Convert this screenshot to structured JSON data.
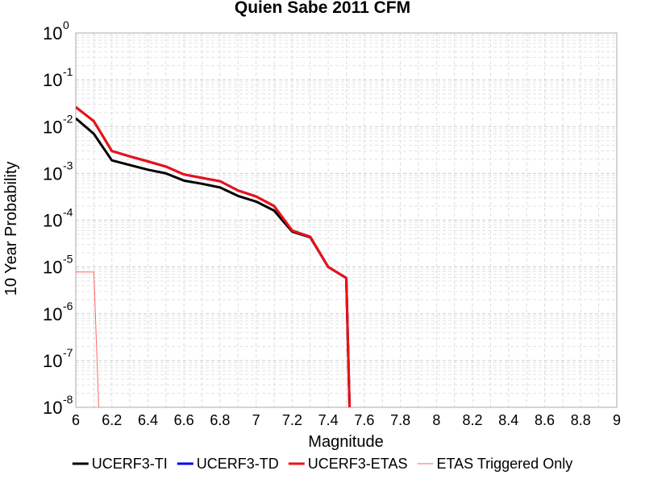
{
  "chart_data": {
    "type": "line",
    "title": "Quien Sabe 2011 CFM",
    "xlabel": "Magnitude",
    "ylabel": "10 Year Probability",
    "xlim": [
      6,
      9
    ],
    "ylim": [
      1e-08,
      1
    ],
    "y_scale": "log",
    "grid": true,
    "legend_position": "bottom",
    "x_ticks": [
      "6",
      "6.2",
      "6.4",
      "6.6",
      "6.8",
      "7",
      "7.2",
      "7.4",
      "7.6",
      "7.8",
      "8",
      "8.2",
      "8.4",
      "8.6",
      "8.8",
      "9"
    ],
    "y_ticks": [
      {
        "base": "10",
        "exp": "0",
        "value": 1
      },
      {
        "base": "10",
        "exp": "-1",
        "value": 0.1
      },
      {
        "base": "10",
        "exp": "-2",
        "value": 0.01
      },
      {
        "base": "10",
        "exp": "-3",
        "value": 0.001
      },
      {
        "base": "10",
        "exp": "-4",
        "value": 0.0001
      },
      {
        "base": "10",
        "exp": "-5",
        "value": 1e-05
      },
      {
        "base": "10",
        "exp": "-6",
        "value": 1e-06
      },
      {
        "base": "10",
        "exp": "-7",
        "value": 1e-07
      },
      {
        "base": "10",
        "exp": "-8",
        "value": 1e-08
      }
    ],
    "series": [
      {
        "name": "UCERF3-TI",
        "color": "#000000",
        "width": 3,
        "x": [
          6.0,
          6.1,
          6.2,
          6.3,
          6.4,
          6.5,
          6.6,
          6.7,
          6.8,
          6.9,
          7.0,
          7.1,
          7.2,
          7.3,
          7.4,
          7.5,
          7.52
        ],
        "y": [
          0.015,
          0.007,
          0.0019,
          0.0015,
          0.0012,
          0.001,
          0.0007,
          0.0006,
          0.0005,
          0.00033,
          0.00025,
          0.00016,
          5.7e-05,
          4.3e-05,
          1e-05,
          5.8e-06,
          5e-09
        ]
      },
      {
        "name": "UCERF3-TD",
        "color": "#0000ee",
        "width": 3,
        "x": [
          6.0,
          6.1,
          6.2,
          6.3,
          6.4,
          6.5,
          6.6,
          6.7,
          6.8,
          6.9,
          7.0,
          7.1,
          7.2,
          7.3,
          7.4,
          7.5,
          7.52
        ],
        "y": [
          0.026,
          0.013,
          0.003,
          0.0023,
          0.0018,
          0.0014,
          0.00095,
          0.0008,
          0.00068,
          0.00043,
          0.00032,
          0.0002,
          6e-05,
          4.4e-05,
          1e-05,
          5.8e-06,
          5e-09
        ]
      },
      {
        "name": "UCERF3-ETAS",
        "color": "#ee1111",
        "width": 3,
        "x": [
          6.0,
          6.1,
          6.2,
          6.3,
          6.4,
          6.5,
          6.6,
          6.7,
          6.8,
          6.9,
          7.0,
          7.1,
          7.2,
          7.3,
          7.4,
          7.5,
          7.52
        ],
        "y": [
          0.026,
          0.013,
          0.003,
          0.0023,
          0.0018,
          0.0014,
          0.00095,
          0.0008,
          0.00068,
          0.00043,
          0.00032,
          0.0002,
          6e-05,
          4.4e-05,
          1e-05,
          5.8e-06,
          5e-09
        ]
      },
      {
        "name": "ETAS Triggered Only",
        "color": "#ff6666",
        "width": 1,
        "x": [
          6.0,
          6.1,
          6.13
        ],
        "y": [
          7.8e-06,
          7.8e-06,
          5e-09
        ]
      }
    ]
  }
}
